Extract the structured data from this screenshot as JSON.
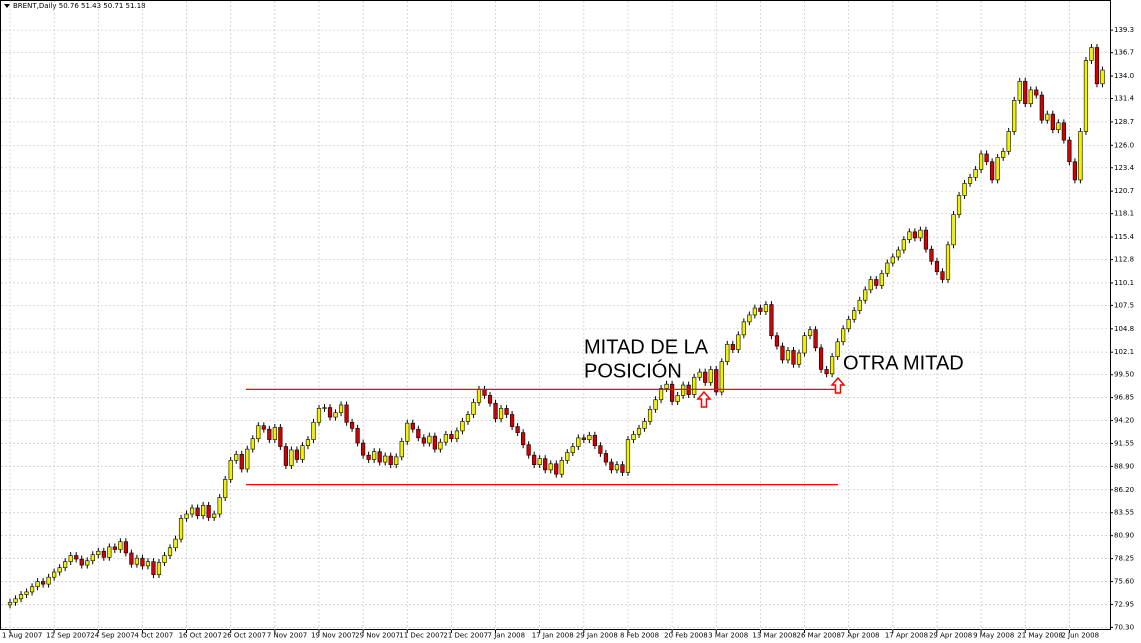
{
  "chart_data": {
    "type": "candlestick",
    "title": "BRENT,Daily  50.76 51.43 50.71 51.18",
    "annotations": [
      [
        "MITAD DE LA",
        "POSICIÓN"
      ],
      [
        "OTRA MITAD"
      ]
    ],
    "levels": [
      97.8,
      86.8
    ],
    "up_color": "#f2f200",
    "down_color": "#d40000",
    "wick_color": "#000000",
    "level_color": "#ff0000",
    "grid": true,
    "ylim": [
      70.0,
      141.4
    ],
    "yticks": [
      {
        "value": 70.3,
        "label": "70.30"
      },
      72.95,
      {
        "value": 75.6,
        "label": "75.60"
      },
      78.25,
      {
        "value": 80.9,
        "label": "80.90"
      },
      83.55,
      {
        "value": 86.2,
        "label": "86.20"
      },
      {
        "value": 88.9,
        "label": "88.90"
      },
      91.55,
      {
        "value": 94.2,
        "label": "94.20"
      },
      96.85,
      {
        "value": 99.5,
        "label": "99.50"
      },
      102.1,
      104.8,
      107.5,
      110.1,
      112.8,
      115.4,
      118.1,
      120.7,
      123.4,
      {
        "value": 126.0,
        "label": "126.0"
      },
      128.7,
      131.4,
      {
        "value": 134.0,
        "label": "134.0"
      },
      136.7,
      139.3
    ],
    "categories": [
      "1 Aug 2007",
      null,
      null,
      null,
      null,
      null,
      null,
      null,
      "12 Sep 2007",
      null,
      null,
      null,
      null,
      null,
      null,
      null,
      "24 Sep 2007",
      null,
      null,
      null,
      null,
      null,
      null,
      null,
      "4 Oct 2007",
      null,
      null,
      null,
      null,
      null,
      null,
      null,
      "16 Oct 2007",
      null,
      null,
      null,
      null,
      null,
      null,
      null,
      "26 Oct 2007",
      null,
      null,
      null,
      null,
      null,
      null,
      null,
      "7 Nov 2007",
      null,
      null,
      null,
      null,
      null,
      null,
      null,
      "19 Nov 2007",
      null,
      null,
      null,
      null,
      null,
      null,
      null,
      "29 Nov 2007",
      null,
      null,
      null,
      null,
      null,
      null,
      null,
      "11 Dec 2007",
      null,
      null,
      null,
      null,
      null,
      null,
      null,
      "21 Dec 2007",
      null,
      null,
      null,
      null,
      null,
      null,
      null,
      "7 Jan 2008",
      null,
      null,
      null,
      null,
      null,
      null,
      null,
      "17 Jan 2008",
      null,
      null,
      null,
      null,
      null,
      null,
      null,
      "29 Jan 2008",
      null,
      null,
      null,
      null,
      null,
      null,
      null,
      "8 Feb 2008",
      null,
      null,
      null,
      null,
      null,
      null,
      null,
      "20 Feb 2008",
      null,
      null,
      null,
      null,
      null,
      null,
      null,
      "3 Mar 2008",
      null,
      null,
      null,
      null,
      null,
      null,
      null,
      "13 Mar 2008",
      null,
      null,
      null,
      null,
      null,
      null,
      null,
      "26 Mar 2008",
      null,
      null,
      null,
      null,
      null,
      null,
      null,
      "7 Apr 2008",
      null,
      null,
      null,
      null,
      null,
      null,
      null,
      "17 Apr 2008",
      null,
      null,
      null,
      null,
      null,
      null,
      null,
      "29 Apr 2008",
      null,
      null,
      null,
      null,
      null,
      null,
      null,
      "9 May 2008",
      null,
      null,
      null,
      null,
      null,
      null,
      null,
      "21 May 2008",
      null,
      null,
      null,
      null,
      null,
      null,
      null,
      "2 Jun 2008",
      null,
      null,
      null,
      null,
      null,
      null
    ],
    "open": [
      72.9,
      73.2,
      73.6,
      74.1,
      74.4,
      75.0,
      75.6,
      75.3,
      76.1,
      76.7,
      77.2,
      77.9,
      78.6,
      78.2,
      77.5,
      78.0,
      78.7,
      79.1,
      78.4,
      79.6,
      79.3,
      80.2,
      78.9,
      77.6,
      78.3,
      77.4,
      77.9,
      76.4,
      77.8,
      78.6,
      79.5,
      80.5,
      82.9,
      83.4,
      84.1,
      83.2,
      84.4,
      83.0,
      83.4,
      85.3,
      87.4,
      89.6,
      90.3,
      88.6,
      90.9,
      92.1,
      93.6,
      93.2,
      92.0,
      93.4,
      91.2,
      89.0,
      90.8,
      89.7,
      91.3,
      92.0,
      94.0,
      95.6,
      95.7,
      94.6,
      95.1,
      96.0,
      94.0,
      93.3,
      91.6,
      90.2,
      89.7,
      90.6,
      89.4,
      90.1,
      89.1,
      90.0,
      91.8,
      93.9,
      93.2,
      92.2,
      91.6,
      92.4,
      90.9,
      91.7,
      92.6,
      92.1,
      93.0,
      94.1,
      94.9,
      96.3,
      97.8,
      97.1,
      96.2,
      94.4,
      95.6,
      94.9,
      93.5,
      92.8,
      91.4,
      90.2,
      89.1,
      89.8,
      88.5,
      89.2,
      88.0,
      89.6,
      90.5,
      91.2,
      92.2,
      92.0,
      92.5,
      91.3,
      90.4,
      89.4,
      88.5,
      89.1,
      88.2,
      92.0,
      92.6,
      93.3,
      94.1,
      95.5,
      96.6,
      97.9,
      98.4,
      96.4,
      97.1,
      98.3,
      97.2,
      99.2,
      99.8,
      98.6,
      100.1,
      97.5,
      101.0,
      103.0,
      102.4,
      104.1,
      105.6,
      106.4,
      107.2,
      106.8,
      107.6,
      104.0,
      102.8,
      101.2,
      102.3,
      100.7,
      102.0,
      104.0,
      104.7,
      102.6,
      100.1,
      99.6,
      101.6,
      103.3,
      104.8,
      105.9,
      106.9,
      108.1,
      109.3,
      110.5,
      109.8,
      111.2,
      112.4,
      113.1,
      113.9,
      115.1,
      116.0,
      115.3,
      116.2,
      114.0,
      112.6,
      111.4,
      110.5,
      114.5,
      118.0,
      120.2,
      121.6,
      122.3,
      123.2,
      125.0,
      124.1,
      122.0,
      124.6,
      125.3,
      127.6,
      131.2,
      133.4,
      130.8,
      132.4,
      131.8,
      128.9,
      129.6,
      127.8,
      128.6,
      126.6,
      124.1,
      122.0,
      127.6,
      135.8,
      137.3,
      133.1
    ],
    "high": [
      73.6,
      74.0,
      74.5,
      74.8,
      75.4,
      76.0,
      76.0,
      76.5,
      77.1,
      77.6,
      78.3,
      79.0,
      79.0,
      78.6,
      78.4,
      79.1,
      79.5,
      79.5,
      80.0,
      80.0,
      80.6,
      80.6,
      79.3,
      78.7,
      78.7,
      78.3,
      78.3,
      78.2,
      79.0,
      79.9,
      80.9,
      83.3,
      83.8,
      84.5,
      84.5,
      84.8,
      84.8,
      83.8,
      85.7,
      87.8,
      90.0,
      90.7,
      90.7,
      91.3,
      92.5,
      94.0,
      94.0,
      93.6,
      93.8,
      93.8,
      91.6,
      91.2,
      91.2,
      91.7,
      92.4,
      94.4,
      96.0,
      96.1,
      96.1,
      95.5,
      96.4,
      96.4,
      94.4,
      93.7,
      92.0,
      90.6,
      91.0,
      91.0,
      90.5,
      90.5,
      90.4,
      92.2,
      94.3,
      94.3,
      93.6,
      92.6,
      92.8,
      92.8,
      92.1,
      93.0,
      93.0,
      93.4,
      94.5,
      95.3,
      96.7,
      98.2,
      98.2,
      97.5,
      96.6,
      96.0,
      96.0,
      95.3,
      93.9,
      93.2,
      91.8,
      90.6,
      90.2,
      90.2,
      89.6,
      89.6,
      90.0,
      90.9,
      91.6,
      92.6,
      92.6,
      92.9,
      92.9,
      91.7,
      90.8,
      89.8,
      89.5,
      89.5,
      92.4,
      93.0,
      93.7,
      94.5,
      95.9,
      97.0,
      98.3,
      98.8,
      98.8,
      97.5,
      98.7,
      98.7,
      99.6,
      100.2,
      100.2,
      100.5,
      100.5,
      101.4,
      103.4,
      103.4,
      104.5,
      106.0,
      106.8,
      107.6,
      107.6,
      108.0,
      108.0,
      104.4,
      103.2,
      102.7,
      102.7,
      102.4,
      104.4,
      105.1,
      105.1,
      103.0,
      100.5,
      102.0,
      103.7,
      105.2,
      106.3,
      107.3,
      108.5,
      109.7,
      110.9,
      110.9,
      111.6,
      112.8,
      113.5,
      114.3,
      115.5,
      116.4,
      116.4,
      116.6,
      116.6,
      114.4,
      113.0,
      111.8,
      114.9,
      118.4,
      120.6,
      122.0,
      122.7,
      123.6,
      125.4,
      125.4,
      124.5,
      125.0,
      125.7,
      128.0,
      131.6,
      133.8,
      133.8,
      132.8,
      132.8,
      132.2,
      130.0,
      130.0,
      129.0,
      129.0,
      127.0,
      124.5,
      128.0,
      136.2,
      137.7,
      137.7,
      135.1
    ],
    "low": [
      72.5,
      72.8,
      73.2,
      73.7,
      74.0,
      74.6,
      74.9,
      74.9,
      75.7,
      76.3,
      76.8,
      77.5,
      77.8,
      77.1,
      77.1,
      77.6,
      78.3,
      78.0,
      78.0,
      78.9,
      78.9,
      78.5,
      77.2,
      77.2,
      77.0,
      77.0,
      76.0,
      76.0,
      77.4,
      78.2,
      79.1,
      80.1,
      82.5,
      83.0,
      82.8,
      82.8,
      82.6,
      82.6,
      83.0,
      84.9,
      87.0,
      89.2,
      88.2,
      88.2,
      90.5,
      91.7,
      92.8,
      91.6,
      91.6,
      90.8,
      88.6,
      88.6,
      89.3,
      89.3,
      90.9,
      91.6,
      93.6,
      95.2,
      94.2,
      94.2,
      94.7,
      93.6,
      92.9,
      91.2,
      89.8,
      89.3,
      89.3,
      89.0,
      89.0,
      88.7,
      88.7,
      89.6,
      91.4,
      92.8,
      91.8,
      91.2,
      91.2,
      90.5,
      90.5,
      91.3,
      91.7,
      91.7,
      92.6,
      93.7,
      94.5,
      95.9,
      96.7,
      95.8,
      94.0,
      94.0,
      94.5,
      93.1,
      92.4,
      91.0,
      89.8,
      88.7,
      88.7,
      88.1,
      88.1,
      87.6,
      87.6,
      89.2,
      90.1,
      90.8,
      91.6,
      91.6,
      90.9,
      90.0,
      89.0,
      88.1,
      88.1,
      87.8,
      87.8,
      91.6,
      92.2,
      92.9,
      93.7,
      95.1,
      96.2,
      97.5,
      96.0,
      96.0,
      96.7,
      96.8,
      96.8,
      98.8,
      98.2,
      98.2,
      97.1,
      97.1,
      100.6,
      102.0,
      102.0,
      103.7,
      105.2,
      106.0,
      106.4,
      106.4,
      103.6,
      102.4,
      100.8,
      100.8,
      100.3,
      100.3,
      101.6,
      103.6,
      102.2,
      99.7,
      99.2,
      99.2,
      101.2,
      102.9,
      104.4,
      105.5,
      106.5,
      107.7,
      108.9,
      109.4,
      109.4,
      110.8,
      112.0,
      112.7,
      113.5,
      114.7,
      114.9,
      114.9,
      113.6,
      112.2,
      111.0,
      110.1,
      110.1,
      114.1,
      117.6,
      119.8,
      121.2,
      121.9,
      122.8,
      123.7,
      121.6,
      121.6,
      124.2,
      124.9,
      127.2,
      130.8,
      130.4,
      130.4,
      131.4,
      128.5,
      128.5,
      127.4,
      127.4,
      126.2,
      123.7,
      121.6,
      121.6,
      127.2,
      135.4,
      132.7,
      132.7
    ],
    "close": [
      73.2,
      73.6,
      74.1,
      74.4,
      75.0,
      75.6,
      75.3,
      76.1,
      76.7,
      77.2,
      77.9,
      78.6,
      78.2,
      77.5,
      78.0,
      78.7,
      79.1,
      78.4,
      79.6,
      79.3,
      80.2,
      78.9,
      77.6,
      78.3,
      77.4,
      77.9,
      76.4,
      77.8,
      78.6,
      79.5,
      80.5,
      82.9,
      83.4,
      84.1,
      83.2,
      84.4,
      83.0,
      83.4,
      85.3,
      87.4,
      89.6,
      90.3,
      88.6,
      90.9,
      92.1,
      93.6,
      93.2,
      92.0,
      93.4,
      91.2,
      89.0,
      90.8,
      89.7,
      91.3,
      92.0,
      94.0,
      95.6,
      95.7,
      94.6,
      95.1,
      96.0,
      94.0,
      93.3,
      91.6,
      90.2,
      89.7,
      90.6,
      89.4,
      90.1,
      89.1,
      90.0,
      91.8,
      93.9,
      93.2,
      92.2,
      91.6,
      92.4,
      90.9,
      91.7,
      92.6,
      92.1,
      93.0,
      94.1,
      94.9,
      96.3,
      97.8,
      97.1,
      96.2,
      94.4,
      95.6,
      94.9,
      93.5,
      92.8,
      91.4,
      90.2,
      89.1,
      89.8,
      88.5,
      89.2,
      88.0,
      89.6,
      90.5,
      91.2,
      92.2,
      92.0,
      92.5,
      91.3,
      90.4,
      89.4,
      88.5,
      89.1,
      88.2,
      92.0,
      92.6,
      93.3,
      94.1,
      95.5,
      96.6,
      97.9,
      98.4,
      96.4,
      97.1,
      98.3,
      97.2,
      99.2,
      99.8,
      98.6,
      100.1,
      97.5,
      101.0,
      103.0,
      102.4,
      104.1,
      105.6,
      106.4,
      107.2,
      106.8,
      107.6,
      104.0,
      102.8,
      101.2,
      102.3,
      100.7,
      102.0,
      104.0,
      104.7,
      102.6,
      100.1,
      99.6,
      101.6,
      103.3,
      104.8,
      105.9,
      106.9,
      108.1,
      109.3,
      110.5,
      109.8,
      111.2,
      112.4,
      113.1,
      113.9,
      115.1,
      116.0,
      115.3,
      116.2,
      114.0,
      112.6,
      111.4,
      110.5,
      114.5,
      118.0,
      120.2,
      121.6,
      122.3,
      123.2,
      125.0,
      124.1,
      122.0,
      124.6,
      125.3,
      127.6,
      131.2,
      133.4,
      130.8,
      132.4,
      131.8,
      128.9,
      129.6,
      127.8,
      128.6,
      126.6,
      124.1,
      122.0,
      127.6,
      135.8,
      137.3,
      133.1,
      134.7
    ]
  }
}
